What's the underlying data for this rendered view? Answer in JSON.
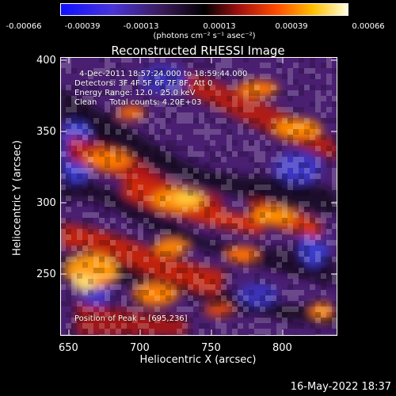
{
  "colorbar": {
    "ticks": [
      "-0.00066",
      "-0.00039",
      "-0.00013",
      "0.00013",
      "0.00039",
      "0.00066"
    ],
    "unit": "(photons cm⁻² s⁻¹ asec⁻²)"
  },
  "title": "Reconstructed RHESSI Image",
  "info": {
    "time": "4-Dec-2011 18:57:24.000 to 18:59:44.000",
    "detectors": "Detectors: 3F 4F 5F 6F 7F 8F, Att 0",
    "energy": "Energy Range: 12.0 - 25.0 keV",
    "clean": "Clean     Total counts: 4.20E+03",
    "peak": "Position of Peak = [695,236]"
  },
  "axes": {
    "xlabel": "Heliocentric X (arcsec)",
    "ylabel": "Heliocentric Y (arcsec)",
    "xticks": [
      "650",
      "700",
      "750",
      "800"
    ],
    "yticks": [
      "400",
      "350",
      "300",
      "250"
    ]
  },
  "timestamp": "16-May-2022 18:37"
}
